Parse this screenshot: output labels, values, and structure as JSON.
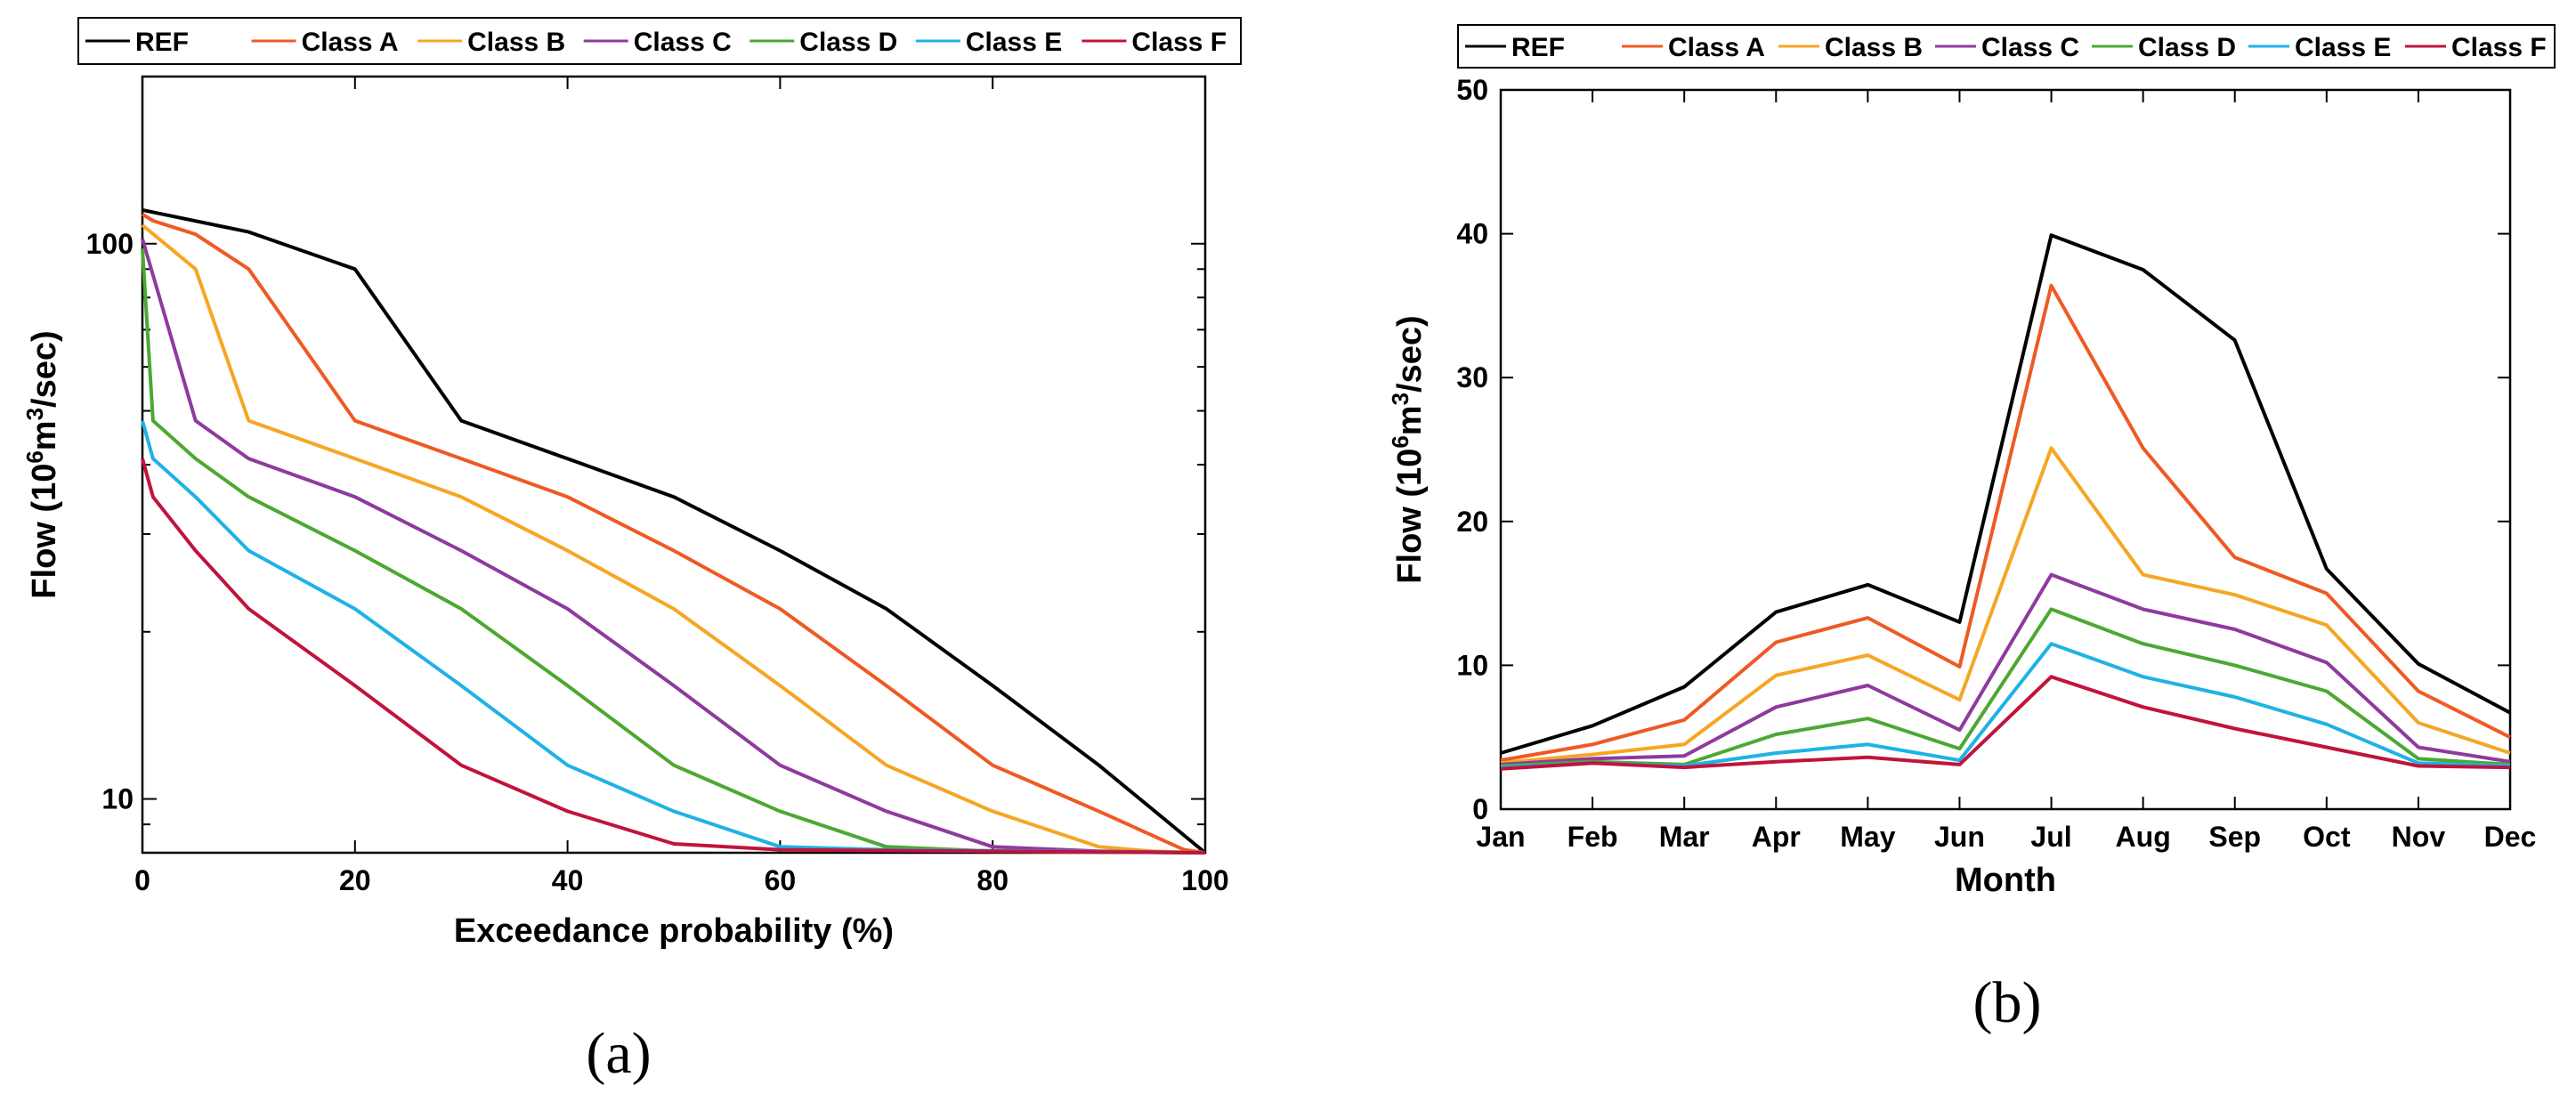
{
  "chart_data": [
    {
      "type": "line",
      "panel_label": "(a)",
      "xlabel": "Exceedance probability (%)",
      "ylabel_main": "Flow (10",
      "ylabel_sup1": "6",
      "ylabel_mid": "m",
      "ylabel_sup2": "3",
      "ylabel_end": "/sec)",
      "yscale": "log",
      "xlim": [
        0,
        100
      ],
      "ylim": [
        8,
        200
      ],
      "x_ticks": [
        0,
        20,
        40,
        60,
        80,
        100
      ],
      "x_tick_labels": [
        "0",
        "20",
        "40",
        "60",
        "80",
        "100"
      ],
      "y_ticks": [
        10,
        100
      ],
      "y_tick_labels": [
        "10",
        "100"
      ],
      "legend_placement": "top (outside)",
      "series": [
        {
          "name": "REF",
          "color": "#000000",
          "x": [
            0,
            10,
            20,
            30,
            40,
            50,
            60,
            70,
            80,
            90,
            100
          ],
          "y": [
            115,
            105,
            90,
            48,
            41,
            35,
            28,
            22,
            16,
            11.5,
            8
          ]
        },
        {
          "name": "Class A",
          "color": "#EE5A24",
          "x": [
            0,
            1,
            5,
            10,
            20,
            30,
            40,
            50,
            60,
            70,
            80,
            90,
            98,
            100
          ],
          "y": [
            113,
            110,
            104,
            90,
            48,
            41,
            35,
            28,
            22,
            16,
            11.5,
            9.5,
            8.1,
            8
          ]
        },
        {
          "name": "Class B",
          "color": "#F5A623",
          "x": [
            0,
            5,
            10,
            20,
            30,
            40,
            50,
            60,
            70,
            80,
            90,
            95,
            100
          ],
          "y": [
            108,
            90,
            48,
            41,
            35,
            28,
            22,
            16,
            11.5,
            9.5,
            8.2,
            8.05,
            8
          ]
        },
        {
          "name": "Class C",
          "color": "#8E3A9E",
          "x": [
            0,
            5,
            10,
            20,
            30,
            40,
            50,
            60,
            70,
            80,
            90,
            100
          ],
          "y": [
            102,
            48,
            41,
            35,
            28,
            22,
            16,
            11.5,
            9.5,
            8.2,
            8.05,
            8
          ]
        },
        {
          "name": "Class D",
          "color": "#4CA832",
          "x": [
            0,
            1,
            5,
            10,
            20,
            30,
            40,
            50,
            60,
            70,
            80,
            100
          ],
          "y": [
            98,
            48,
            41,
            35,
            28,
            22,
            16,
            11.5,
            9.5,
            8.2,
            8.05,
            8
          ]
        },
        {
          "name": "Class E",
          "color": "#1FB2E6",
          "x": [
            0,
            1,
            5,
            10,
            20,
            30,
            40,
            50,
            60,
            70,
            100
          ],
          "y": [
            48,
            41,
            35,
            28,
            22,
            16,
            11.5,
            9.5,
            8.2,
            8.1,
            8
          ]
        },
        {
          "name": "Class F",
          "color": "#C0143C",
          "x": [
            0,
            1,
            5,
            10,
            20,
            30,
            40,
            50,
            60,
            100
          ],
          "y": [
            41,
            35,
            28,
            22,
            16,
            11.5,
            9.5,
            8.3,
            8.1,
            8
          ]
        }
      ]
    },
    {
      "type": "line",
      "panel_label": "(b)",
      "xlabel": "Month",
      "ylabel_main": "Flow (10",
      "ylabel_sup1": "6",
      "ylabel_mid": "m",
      "ylabel_sup2": "3",
      "ylabel_end": "/sec)",
      "yscale": "linear",
      "categories": [
        "Jan",
        "Feb",
        "Mar",
        "Apr",
        "May",
        "Jun",
        "Jul",
        "Aug",
        "Sep",
        "Oct",
        "Nov",
        "Dec"
      ],
      "ylim": [
        0,
        50
      ],
      "y_ticks": [
        0,
        10,
        20,
        30,
        40,
        50
      ],
      "y_tick_labels": [
        "0",
        "10",
        "20",
        "30",
        "40",
        "50"
      ],
      "legend_placement": "top (outside)",
      "series": [
        {
          "name": "REF",
          "color": "#000000",
          "values": [
            3.9,
            5.8,
            8.5,
            13.7,
            15.6,
            13.0,
            39.9,
            37.5,
            32.6,
            16.7,
            10.1,
            6.7
          ]
        },
        {
          "name": "Class A",
          "color": "#EE5A24",
          "values": [
            3.4,
            4.5,
            6.2,
            11.6,
            13.3,
            9.9,
            36.4,
            25.1,
            17.5,
            15.0,
            8.2,
            5.0
          ]
        },
        {
          "name": "Class B",
          "color": "#F5A623",
          "values": [
            3.2,
            3.8,
            4.5,
            9.3,
            10.7,
            7.6,
            25.1,
            16.3,
            14.9,
            12.8,
            6.0,
            3.9
          ]
        },
        {
          "name": "Class C",
          "color": "#8E3A9E",
          "values": [
            3.1,
            3.5,
            3.7,
            7.1,
            8.6,
            5.5,
            16.3,
            13.9,
            12.5,
            10.2,
            4.3,
            3.3
          ]
        },
        {
          "name": "Class D",
          "color": "#4CA832",
          "values": [
            3.0,
            3.3,
            3.1,
            5.2,
            6.3,
            4.2,
            13.9,
            11.5,
            10.0,
            8.2,
            3.5,
            3.1
          ]
        },
        {
          "name": "Class E",
          "color": "#1FB2E6",
          "values": [
            2.9,
            3.2,
            3.0,
            3.9,
            4.5,
            3.4,
            11.5,
            9.2,
            7.8,
            5.9,
            3.2,
            3.0
          ]
        },
        {
          "name": "Class F",
          "color": "#C0143C",
          "values": [
            2.8,
            3.2,
            2.9,
            3.3,
            3.6,
            3.1,
            9.2,
            7.1,
            5.6,
            4.3,
            3.0,
            2.9
          ]
        }
      ]
    }
  ]
}
